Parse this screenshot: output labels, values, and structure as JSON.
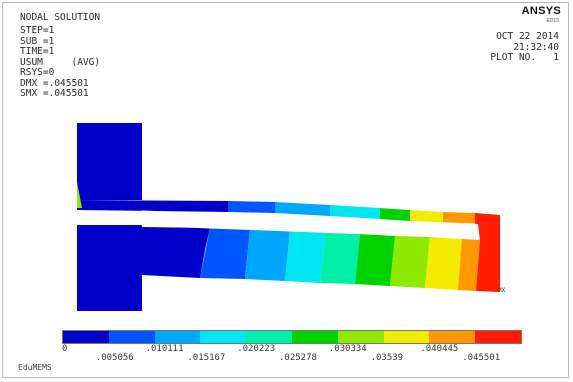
{
  "header": {
    "title": "NODAL SOLUTION",
    "brand": "ANSYS",
    "brand_sub": "ED15"
  },
  "info_left": [
    "STEP=1",
    "SUB =1",
    "TIME=1",
    "USUM     (AVG)",
    "RSYS=0",
    "DMX =.045501",
    "SMX =.045501"
  ],
  "info_right": [
    "OCT 22 2014",
    "21:32:40",
    "PLOT NO.   1"
  ],
  "labels": {
    "mx": "MX"
  },
  "legend": {
    "colors": [
      "#0000c8",
      "#0056ff",
      "#00a7ff",
      "#00e6f2",
      "#00f0a8",
      "#00d200",
      "#8ee800",
      "#f4ec00",
      "#ff9800",
      "#ff1c00"
    ],
    "ticks_top": [
      "0",
      ".010111",
      ".020223",
      ".030334",
      ".040445"
    ],
    "ticks_bottom": [
      ".005056",
      ".015167",
      ".025278",
      ".03539",
      ".045501"
    ]
  },
  "footer": {
    "label": "EduMEMS"
  }
}
